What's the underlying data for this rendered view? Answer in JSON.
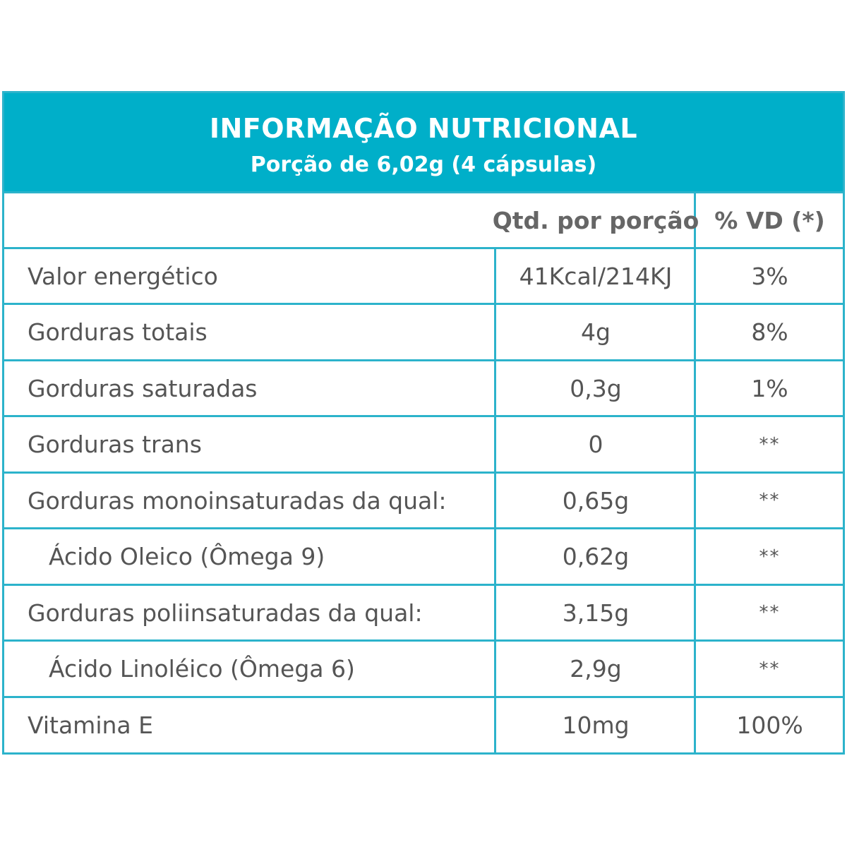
{
  "header": {
    "title": "INFORMAÇÃO NUTRICIONAL",
    "subtitle": "Porção de 6,02g (4 cápsulas)"
  },
  "columns": {
    "qty": "Qtd. por porção",
    "vd": "% VD (*)"
  },
  "rows": [
    {
      "name": "Valor energético",
      "qty": "41Kcal/214KJ",
      "vd": "3%"
    },
    {
      "name": "Gorduras totais",
      "qty": "4g",
      "vd": "8%"
    },
    {
      "name": "Gorduras  saturadas",
      "qty": "0,3g",
      "vd": "1%"
    },
    {
      "name": "Gorduras trans",
      "qty": "0",
      "vd": "**"
    },
    {
      "name": "Gorduras monoinsaturadas da qual:",
      "qty": "0,65g",
      "vd": "**"
    },
    {
      "name": "Ácido Oleico (Ômega 9)",
      "qty": "0,62g",
      "vd": "**"
    },
    {
      "name": "Gorduras poliinsaturadas da qual:",
      "qty": "3,15g",
      "vd": "**"
    },
    {
      "name": "Ácido Linoléico (Ômega 6)",
      "qty": "2,9g",
      "vd": "**"
    },
    {
      "name": "Vitamina E",
      "qty": "10mg",
      "vd": "100%"
    }
  ],
  "colors": {
    "header_bg": "#00afc9",
    "border": "#2cb3cb",
    "text": "#555555"
  }
}
